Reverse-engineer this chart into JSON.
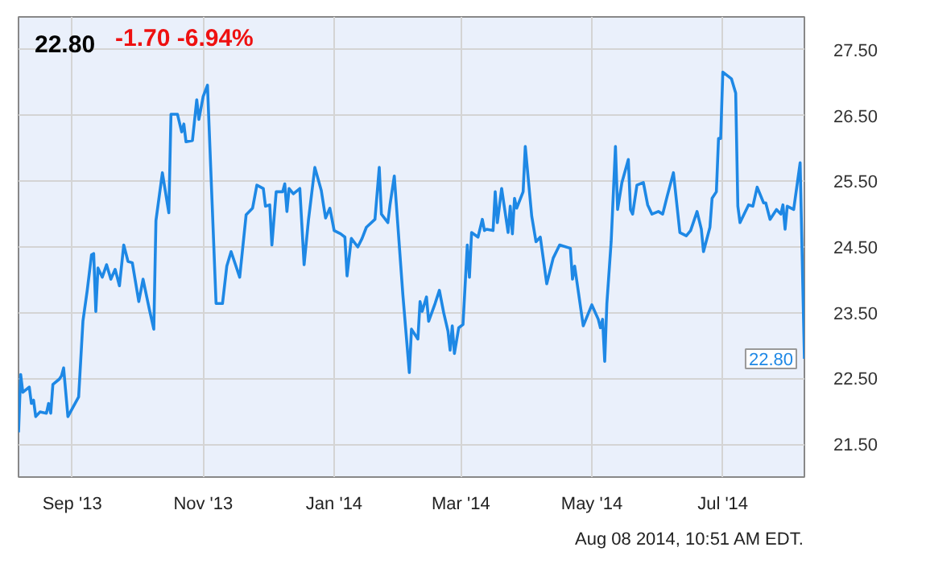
{
  "chart_data": {
    "type": "line",
    "title": "22.80",
    "subtitle": "-1.70  -6.94%",
    "annotations": [
      {
        "text": "22.80",
        "x": "2014-08-08",
        "y": 22.8
      },
      "Aug 08 2014, 10:51 AM EDT."
    ],
    "x": [
      "2013-08-07",
      "2013-08-08",
      "2013-08-09",
      "2013-08-12",
      "2013-08-13",
      "2013-08-14",
      "2013-08-15",
      "2013-08-17",
      "2013-08-20",
      "2013-08-21",
      "2013-08-22",
      "2013-08-23",
      "2013-08-26",
      "2013-08-27",
      "2013-08-28",
      "2013-08-30",
      "2013-09-04",
      "2013-09-06",
      "2013-09-08",
      "2013-09-10",
      "2013-09-11",
      "2013-09-12",
      "2013-09-13",
      "2013-09-15",
      "2013-09-17",
      "2013-09-19",
      "2013-09-21",
      "2013-09-23",
      "2013-09-25",
      "2013-09-27",
      "2013-09-29",
      "2013-10-02",
      "2013-10-04",
      "2013-10-07",
      "2013-10-09",
      "2013-10-10",
      "2013-10-13",
      "2013-10-16",
      "2013-10-17",
      "2013-10-20",
      "2013-10-22",
      "2013-10-23",
      "2013-10-24",
      "2013-10-27",
      "2013-10-29",
      "2013-10-30",
      "2013-11-01",
      "2013-11-03",
      "2013-11-07",
      "2013-11-10",
      "2013-11-12",
      "2013-11-14",
      "2013-11-18",
      "2013-11-21",
      "2013-11-24",
      "2013-11-26",
      "2013-11-29",
      "2013-11-30",
      "2013-12-02",
      "2013-12-03",
      "2013-12-05",
      "2013-12-08",
      "2013-12-09",
      "2013-12-10",
      "2013-12-11",
      "2013-12-13",
      "2013-12-16",
      "2013-12-18",
      "2013-12-20",
      "2013-12-23",
      "2013-12-26",
      "2013-12-28",
      "2013-12-30",
      "2014-01-01",
      "2014-01-04",
      "2014-01-06",
      "2014-01-07",
      "2014-01-09",
      "2014-01-12",
      "2014-01-14",
      "2014-01-16",
      "2014-01-20",
      "2014-01-22",
      "2014-01-23",
      "2014-01-26",
      "2014-01-27",
      "2014-01-29",
      "2014-02-02",
      "2014-02-05",
      "2014-02-06",
      "2014-02-09",
      "2014-02-10",
      "2014-02-11",
      "2014-02-13",
      "2014-02-14",
      "2014-02-17",
      "2014-02-19",
      "2014-02-21",
      "2014-02-23",
      "2014-02-24",
      "2014-02-25",
      "2014-02-26",
      "2014-02-28",
      "2014-03-02",
      "2014-03-04",
      "2014-03-05",
      "2014-03-06",
      "2014-03-09",
      "2014-03-11",
      "2014-03-12",
      "2014-03-13",
      "2014-03-16",
      "2014-03-17",
      "2014-03-18",
      "2014-03-20",
      "2014-03-23",
      "2014-03-24",
      "2014-03-25",
      "2014-03-26",
      "2014-03-27",
      "2014-03-30",
      "2014-03-31",
      "2014-04-03",
      "2014-04-05",
      "2014-04-07",
      "2014-04-10",
      "2014-04-13",
      "2014-04-16",
      "2014-04-21",
      "2014-04-22",
      "2014-04-23",
      "2014-04-27",
      "2014-05-01",
      "2014-05-04",
      "2014-05-05",
      "2014-05-06",
      "2014-05-07",
      "2014-05-08",
      "2014-05-10",
      "2014-05-12",
      "2014-05-13",
      "2014-05-15",
      "2014-05-18",
      "2014-05-19",
      "2014-05-20",
      "2014-05-22",
      "2014-05-25",
      "2014-05-27",
      "2014-05-29",
      "2014-06-01",
      "2014-06-03",
      "2014-06-05",
      "2014-06-08",
      "2014-06-11",
      "2014-06-14",
      "2014-06-16",
      "2014-06-19",
      "2014-06-21",
      "2014-06-22",
      "2014-06-25",
      "2014-06-26",
      "2014-06-28",
      "2014-06-29",
      "2014-06-30",
      "2014-07-01",
      "2014-07-05",
      "2014-07-07",
      "2014-07-08",
      "2014-07-09",
      "2014-07-13",
      "2014-07-15",
      "2014-07-17",
      "2014-07-20",
      "2014-07-21",
      "2014-07-23",
      "2014-07-26",
      "2014-07-28",
      "2014-07-29",
      "2014-07-30",
      "2014-07-31",
      "2014-08-03",
      "2014-08-06",
      "2014-08-08"
    ],
    "series": [
      {
        "color": "#1e88e5",
        "values": [
          21.68,
          22.56,
          22.29,
          22.37,
          22.12,
          22.17,
          21.92,
          21.99,
          21.97,
          22.12,
          21.97,
          22.41,
          22.49,
          22.54,
          22.66,
          21.92,
          22.22,
          23.37,
          23.84,
          24.38,
          24.4,
          23.52,
          24.18,
          24.04,
          24.23,
          24.01,
          24.16,
          23.91,
          24.53,
          24.28,
          24.26,
          23.67,
          24.01,
          23.54,
          23.25,
          24.9,
          25.63,
          25.02,
          26.52,
          26.52,
          26.25,
          26.37,
          26.1,
          26.12,
          26.74,
          26.44,
          26.79,
          26.96,
          23.64,
          23.64,
          24.21,
          24.43,
          24.04,
          24.99,
          25.09,
          25.44,
          25.39,
          25.12,
          25.14,
          24.53,
          25.34,
          25.34,
          25.46,
          25.04,
          25.39,
          25.31,
          25.39,
          24.23,
          24.9,
          25.71,
          25.36,
          24.94,
          25.09,
          24.75,
          24.7,
          24.65,
          24.06,
          24.63,
          24.5,
          24.63,
          24.8,
          24.92,
          25.71,
          25.0,
          24.87,
          25.14,
          25.58,
          23.77,
          22.59,
          23.25,
          23.1,
          23.67,
          23.52,
          23.74,
          23.37,
          23.64,
          23.84,
          23.5,
          23.22,
          22.93,
          23.3,
          22.88,
          23.27,
          23.32,
          24.53,
          24.04,
          24.72,
          24.65,
          24.92,
          24.75,
          24.77,
          24.75,
          25.34,
          24.87,
          25.39,
          24.72,
          25.12,
          24.7,
          25.24,
          25.09,
          25.34,
          26.03,
          24.97,
          24.58,
          24.65,
          23.94,
          24.33,
          24.53,
          24.48,
          24.01,
          24.21,
          23.3,
          23.62,
          23.4,
          23.27,
          23.4,
          22.76,
          23.64,
          24.58,
          26.03,
          25.07,
          25.48,
          25.83,
          25.07,
          25.0,
          25.44,
          25.48,
          25.14,
          25.0,
          25.04,
          25.0,
          25.26,
          25.63,
          24.72,
          24.67,
          24.75,
          25.04,
          24.77,
          24.43,
          24.8,
          25.24,
          25.34,
          26.15,
          26.15,
          27.16,
          27.06,
          26.84,
          25.12,
          24.87,
          25.14,
          25.12,
          25.41,
          25.17,
          25.17,
          24.92,
          25.07,
          25.0,
          25.14,
          24.77,
          25.12,
          25.07,
          25.78,
          22.8
        ]
      }
    ],
    "xlim": [
      "2013-08-07",
      "2014-08-08"
    ],
    "xticks": [
      {
        "value": "2013-09-01",
        "label": "Sep '13"
      },
      {
        "value": "2013-11-01",
        "label": "Nov '13"
      },
      {
        "value": "2014-01-01",
        "label": "Jan '14"
      },
      {
        "value": "2014-03-01",
        "label": "Mar '14"
      },
      {
        "value": "2014-05-01",
        "label": "May '14"
      },
      {
        "value": "2014-07-01",
        "label": "Jul '14"
      }
    ],
    "ylim": [
      21.0,
      28.0
    ],
    "yticks": [
      {
        "value": 21.5,
        "label": "21.50"
      },
      {
        "value": 22.5,
        "label": "22.50"
      },
      {
        "value": 23.5,
        "label": "23.50"
      },
      {
        "value": 24.5,
        "label": "24.50"
      },
      {
        "value": 25.5,
        "label": "25.50"
      },
      {
        "value": 26.5,
        "label": "26.50"
      },
      {
        "value": 27.5,
        "label": "27.50"
      }
    ],
    "grid": true,
    "marker": "none",
    "line_style": "solid"
  }
}
